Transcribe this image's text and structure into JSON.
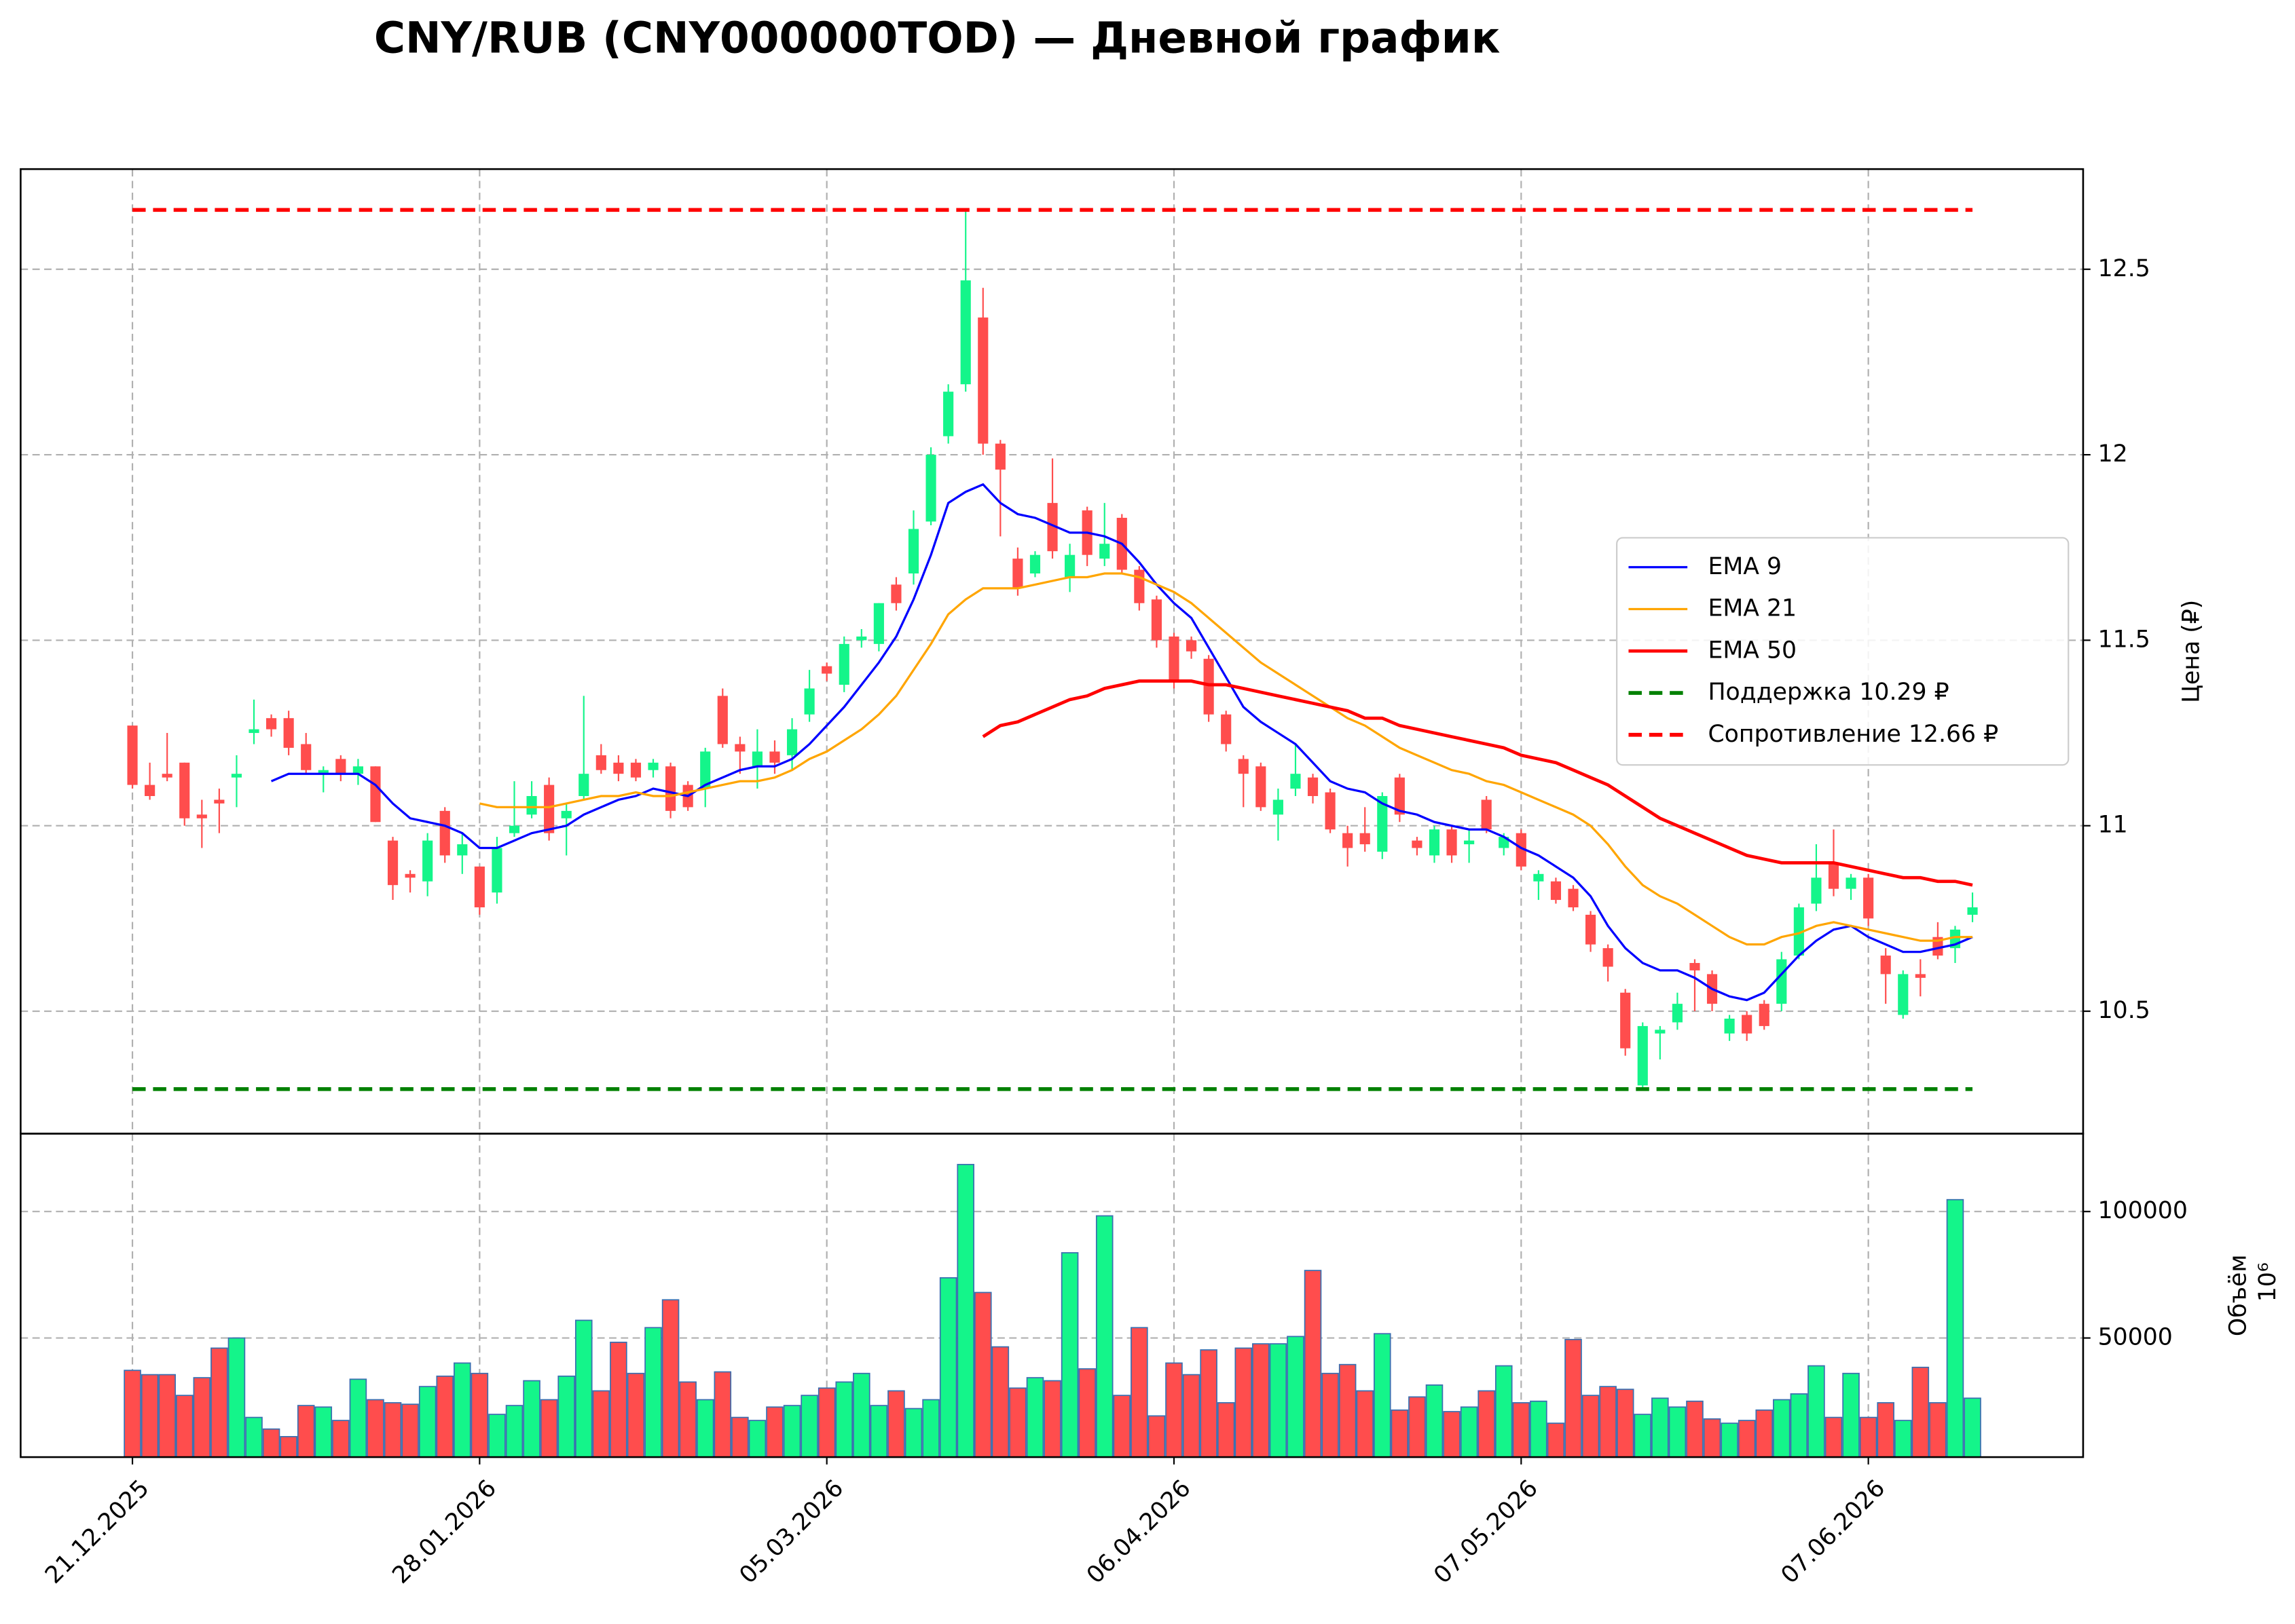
{
  "chart_data": {
    "type": "candlestick",
    "title": "CNY/RUB (CNY000000TOD) — Дневной график",
    "ylabel": "Цена (₽)",
    "y2label": "Объём",
    "y2_offset_label": "10⁶",
    "legend": "center right",
    "grid": true,
    "up_color": "#14f58a",
    "down_color": "#ff4d4d",
    "volume_edge_color": "#3a6fb0",
    "categories": [
      "21.12.2025",
      null,
      null,
      null,
      null,
      null,
      null,
      null,
      null,
      null,
      null,
      null,
      null,
      null,
      null,
      null,
      null,
      null,
      null,
      null,
      "28.01.2026",
      null,
      null,
      null,
      null,
      null,
      null,
      null,
      null,
      null,
      null,
      null,
      null,
      null,
      null,
      null,
      null,
      null,
      null,
      null,
      "05.03.2026",
      null,
      null,
      null,
      null,
      null,
      null,
      null,
      null,
      null,
      null,
      null,
      null,
      null,
      null,
      null,
      null,
      null,
      null,
      null,
      "06.04.2026",
      null,
      null,
      null,
      null,
      null,
      null,
      null,
      null,
      null,
      null,
      null,
      null,
      null,
      null,
      null,
      null,
      null,
      null,
      null,
      "07.05.2026",
      null,
      null,
      null,
      null,
      null,
      null,
      null,
      null,
      null,
      null,
      null,
      null,
      null,
      null,
      null,
      null,
      null,
      null,
      null,
      "07.06.2026",
      null,
      null,
      null,
      null,
      null,
      null
    ],
    "open": [
      11.27,
      11.11,
      11.14,
      11.17,
      11.03,
      11.07,
      11.13,
      11.25,
      11.29,
      11.29,
      11.22,
      11.14,
      11.18,
      11.14,
      11.16,
      10.96,
      10.87,
      10.85,
      11.04,
      10.92,
      10.89,
      10.82,
      10.98,
      11.03,
      11.11,
      11.02,
      11.08,
      11.19,
      11.17,
      11.17,
      11.15,
      11.16,
      11.11,
      11.1,
      11.35,
      11.22,
      11.16,
      11.2,
      11.19,
      11.3,
      11.43,
      11.38,
      11.5,
      11.49,
      11.65,
      11.68,
      11.82,
      12.05,
      12.19,
      12.37,
      12.03,
      11.72,
      11.68,
      11.87,
      11.67,
      11.85,
      11.72,
      11.83,
      11.69,
      11.61,
      11.51,
      11.5,
      11.45,
      11.3,
      11.18,
      11.16,
      11.03,
      11.1,
      11.13,
      11.09,
      10.98,
      10.98,
      10.93,
      11.13,
      10.96,
      10.92,
      10.99,
      10.95,
      11.07,
      10.94,
      10.98,
      10.85,
      10.85,
      10.83,
      10.76,
      10.67,
      10.55,
      10.3,
      10.44,
      10.47,
      10.63,
      10.6,
      10.44,
      10.49,
      10.52,
      10.52,
      10.65,
      10.79,
      10.9,
      10.83,
      10.86,
      10.65,
      10.49,
      10.6,
      10.7,
      10.67,
      10.76
    ],
    "high": [
      11.27,
      11.17,
      11.25,
      11.17,
      11.07,
      11.1,
      11.19,
      11.34,
      11.3,
      11.31,
      11.25,
      11.16,
      11.19,
      11.18,
      11.16,
      10.97,
      10.88,
      10.98,
      11.05,
      10.98,
      10.89,
      10.97,
      11.12,
      11.12,
      11.13,
      11.06,
      11.35,
      11.22,
      11.19,
      11.18,
      11.18,
      11.17,
      11.12,
      11.21,
      11.37,
      11.24,
      11.26,
      11.23,
      11.29,
      11.42,
      11.44,
      11.51,
      11.53,
      11.6,
      11.67,
      11.85,
      12.02,
      12.19,
      12.66,
      12.45,
      12.04,
      11.75,
      11.74,
      11.99,
      11.76,
      11.86,
      11.87,
      11.84,
      11.7,
      11.62,
      11.52,
      11.51,
      11.46,
      11.31,
      11.19,
      11.17,
      11.1,
      11.22,
      11.14,
      11.1,
      11.0,
      11.05,
      11.09,
      11.14,
      10.97,
      11.0,
      11.0,
      10.99,
      11.08,
      10.98,
      10.99,
      10.88,
      10.86,
      10.84,
      10.77,
      10.68,
      10.56,
      10.47,
      10.46,
      10.55,
      10.64,
      10.61,
      10.49,
      10.5,
      10.53,
      10.66,
      10.79,
      10.95,
      10.99,
      10.87,
      10.87,
      10.67,
      10.61,
      10.64,
      10.74,
      10.73,
      10.82
    ],
    "low": [
      11.1,
      11.07,
      11.12,
      11.0,
      10.94,
      10.98,
      11.05,
      11.22,
      11.24,
      11.19,
      11.14,
      11.09,
      11.12,
      11.11,
      11.01,
      10.8,
      10.82,
      10.81,
      10.9,
      10.87,
      10.76,
      10.79,
      10.97,
      11.02,
      10.96,
      10.92,
      11.07,
      11.14,
      11.12,
      11.12,
      11.13,
      11.02,
      11.04,
      11.05,
      11.21,
      11.14,
      11.1,
      11.14,
      11.15,
      11.28,
      11.39,
      11.36,
      11.48,
      11.47,
      11.58,
      11.65,
      11.81,
      12.03,
      12.17,
      12.0,
      11.78,
      11.62,
      11.67,
      11.72,
      11.63,
      11.7,
      11.7,
      11.68,
      11.58,
      11.48,
      11.37,
      11.45,
      11.28,
      11.2,
      11.05,
      11.04,
      10.96,
      11.08,
      11.06,
      10.98,
      10.89,
      10.93,
      10.91,
      11.01,
      10.92,
      10.9,
      10.9,
      10.9,
      10.98,
      10.92,
      10.88,
      10.8,
      10.79,
      10.77,
      10.66,
      10.58,
      10.38,
      10.29,
      10.37,
      10.45,
      10.5,
      10.5,
      10.42,
      10.42,
      10.45,
      10.5,
      10.64,
      10.77,
      10.81,
      10.8,
      10.73,
      10.52,
      10.48,
      10.54,
      10.64,
      10.63,
      10.74
    ],
    "close": [
      11.11,
      11.08,
      11.13,
      11.02,
      11.02,
      11.06,
      11.14,
      11.26,
      11.26,
      11.21,
      11.15,
      11.15,
      11.14,
      11.16,
      11.01,
      10.84,
      10.86,
      10.96,
      10.92,
      10.95,
      10.78,
      10.94,
      11.0,
      11.08,
      10.98,
      11.04,
      11.14,
      11.15,
      11.14,
      11.13,
      11.17,
      11.04,
      11.05,
      11.2,
      11.22,
      11.2,
      11.2,
      11.17,
      11.26,
      11.37,
      11.41,
      11.49,
      11.51,
      11.6,
      11.6,
      11.8,
      12.0,
      12.17,
      12.47,
      12.03,
      11.96,
      11.64,
      11.73,
      11.74,
      11.73,
      11.73,
      11.76,
      11.69,
      11.6,
      11.5,
      11.39,
      11.47,
      11.3,
      11.22,
      11.14,
      11.05,
      11.07,
      11.14,
      11.08,
      10.99,
      10.94,
      10.95,
      11.08,
      11.03,
      10.94,
      10.99,
      10.92,
      10.96,
      10.99,
      10.97,
      10.89,
      10.87,
      10.8,
      10.78,
      10.68,
      10.62,
      10.4,
      10.46,
      10.45,
      10.52,
      10.61,
      10.52,
      10.48,
      10.44,
      10.46,
      10.64,
      10.78,
      10.86,
      10.83,
      10.86,
      10.75,
      10.6,
      10.6,
      10.59,
      10.65,
      10.72,
      10.78
    ],
    "volume": [
      37200,
      35500,
      35500,
      27300,
      34300,
      46000,
      50000,
      18600,
      14000,
      11000,
      23300,
      22700,
      17400,
      33700,
      25600,
      24400,
      23800,
      30800,
      34900,
      40100,
      36000,
      19800,
      23300,
      33100,
      25600,
      34900,
      57000,
      29100,
      48300,
      36000,
      54100,
      65100,
      32600,
      25600,
      36600,
      18600,
      17400,
      22700,
      23300,
      27300,
      30200,
      32600,
      36000,
      23300,
      29100,
      22100,
      25600,
      73800,
      118600,
      68000,
      46500,
      30200,
      34300,
      33100,
      83700,
      37800,
      98300,
      27300,
      54100,
      19200,
      40100,
      35500,
      45300,
      24400,
      46000,
      47700,
      47700,
      50600,
      76700,
      36000,
      39500,
      29100,
      51700,
      21500,
      26700,
      31400,
      20900,
      22700,
      29100,
      39000,
      24400,
      25000,
      16300,
      49400,
      27300,
      30800,
      29700,
      19800,
      26200,
      22700,
      25000,
      18000,
      16300,
      17400,
      21500,
      25600,
      27900,
      39000,
      18600,
      36000,
      18600,
      24400,
      17400,
      38400,
      24400,
      104700,
      26200
    ],
    "series": [
      {
        "name": "EMA 9",
        "color": "#0000ff",
        "values": [
          null,
          null,
          null,
          null,
          null,
          null,
          null,
          null,
          11.12,
          11.14,
          11.14,
          11.14,
          11.14,
          11.14,
          11.11,
          11.06,
          11.02,
          11.01,
          11.0,
          10.98,
          10.94,
          10.94,
          10.96,
          10.98,
          10.99,
          11.0,
          11.03,
          11.05,
          11.07,
          11.08,
          11.1,
          11.09,
          11.08,
          11.11,
          11.13,
          11.15,
          11.16,
          11.16,
          11.18,
          11.22,
          11.27,
          11.32,
          11.38,
          11.44,
          11.51,
          11.61,
          11.73,
          11.87,
          11.9,
          11.92,
          11.87,
          11.84,
          11.83,
          11.81,
          11.79,
          11.79,
          11.78,
          11.76,
          11.71,
          11.65,
          11.6,
          11.56,
          11.48,
          11.4,
          11.32,
          11.28,
          11.25,
          11.22,
          11.17,
          11.12,
          11.1,
          11.09,
          11.06,
          11.04,
          11.03,
          11.01,
          11.0,
          10.99,
          10.99,
          10.97,
          10.94,
          10.92,
          10.89,
          10.86,
          10.81,
          10.73,
          10.67,
          10.63,
          10.61,
          10.61,
          10.59,
          10.56,
          10.54,
          10.53,
          10.55,
          10.6,
          10.65,
          10.69,
          10.72,
          10.73,
          10.7,
          10.68,
          10.66,
          10.66,
          10.67,
          10.68,
          10.7
        ]
      },
      {
        "name": "EMA 21",
        "color": "#ffa500",
        "values": [
          null,
          null,
          null,
          null,
          null,
          null,
          null,
          null,
          null,
          null,
          null,
          null,
          null,
          null,
          null,
          null,
          null,
          null,
          null,
          null,
          11.06,
          11.05,
          11.05,
          11.05,
          11.05,
          11.06,
          11.07,
          11.08,
          11.08,
          11.09,
          11.08,
          11.08,
          11.09,
          11.1,
          11.11,
          11.12,
          11.12,
          11.13,
          11.15,
          11.18,
          11.2,
          11.23,
          11.26,
          11.3,
          11.35,
          11.42,
          11.49,
          11.57,
          11.61,
          11.64,
          11.64,
          11.64,
          11.65,
          11.66,
          11.67,
          11.67,
          11.68,
          11.68,
          11.67,
          11.65,
          11.63,
          11.6,
          11.56,
          11.52,
          11.48,
          11.44,
          11.41,
          11.38,
          11.35,
          11.32,
          11.29,
          11.27,
          11.24,
          11.21,
          11.19,
          11.17,
          11.15,
          11.14,
          11.12,
          11.11,
          11.09,
          11.07,
          11.05,
          11.03,
          11.0,
          10.95,
          10.89,
          10.84,
          10.81,
          10.79,
          10.76,
          10.73,
          10.7,
          10.68,
          10.68,
          10.7,
          10.71,
          10.73,
          10.74,
          10.73,
          10.72,
          10.71,
          10.7,
          10.69,
          10.69,
          10.7,
          10.7
        ]
      },
      {
        "name": "EMA 50",
        "color": "#ff0000",
        "values": [
          null,
          null,
          null,
          null,
          null,
          null,
          null,
          null,
          null,
          null,
          null,
          null,
          null,
          null,
          null,
          null,
          null,
          null,
          null,
          null,
          null,
          null,
          null,
          null,
          null,
          null,
          null,
          null,
          null,
          null,
          null,
          null,
          null,
          null,
          null,
          null,
          null,
          null,
          null,
          null,
          null,
          null,
          null,
          null,
          null,
          null,
          null,
          null,
          null,
          11.24,
          11.27,
          11.28,
          11.3,
          11.32,
          11.34,
          11.35,
          11.37,
          11.38,
          11.39,
          11.39,
          11.39,
          11.39,
          11.38,
          11.38,
          11.37,
          11.36,
          11.35,
          11.34,
          11.33,
          11.32,
          11.31,
          11.29,
          11.29,
          11.27,
          11.26,
          11.25,
          11.24,
          11.23,
          11.22,
          11.21,
          11.19,
          11.18,
          11.17,
          11.15,
          11.13,
          11.11,
          11.08,
          11.05,
          11.02,
          11.0,
          10.98,
          10.96,
          10.94,
          10.92,
          10.91,
          10.9,
          10.9,
          10.9,
          10.9,
          10.89,
          10.88,
          10.87,
          10.86,
          10.86,
          10.85,
          10.85,
          10.84
        ]
      }
    ],
    "hlines": [
      {
        "name": "Поддержка 10.29 ₽",
        "value": 10.29,
        "color": "#008000"
      },
      {
        "name": "Сопротивление 12.66 ₽",
        "value": 12.66,
        "color": "#ff0000"
      }
    ],
    "ylim": [
      10.17,
      12.77
    ],
    "yticks": [
      10.5,
      11.0,
      11.5,
      12.0,
      12.5
    ],
    "y2lim": [
      2900,
      130800
    ],
    "y2ticks": [
      50000,
      100000
    ]
  }
}
